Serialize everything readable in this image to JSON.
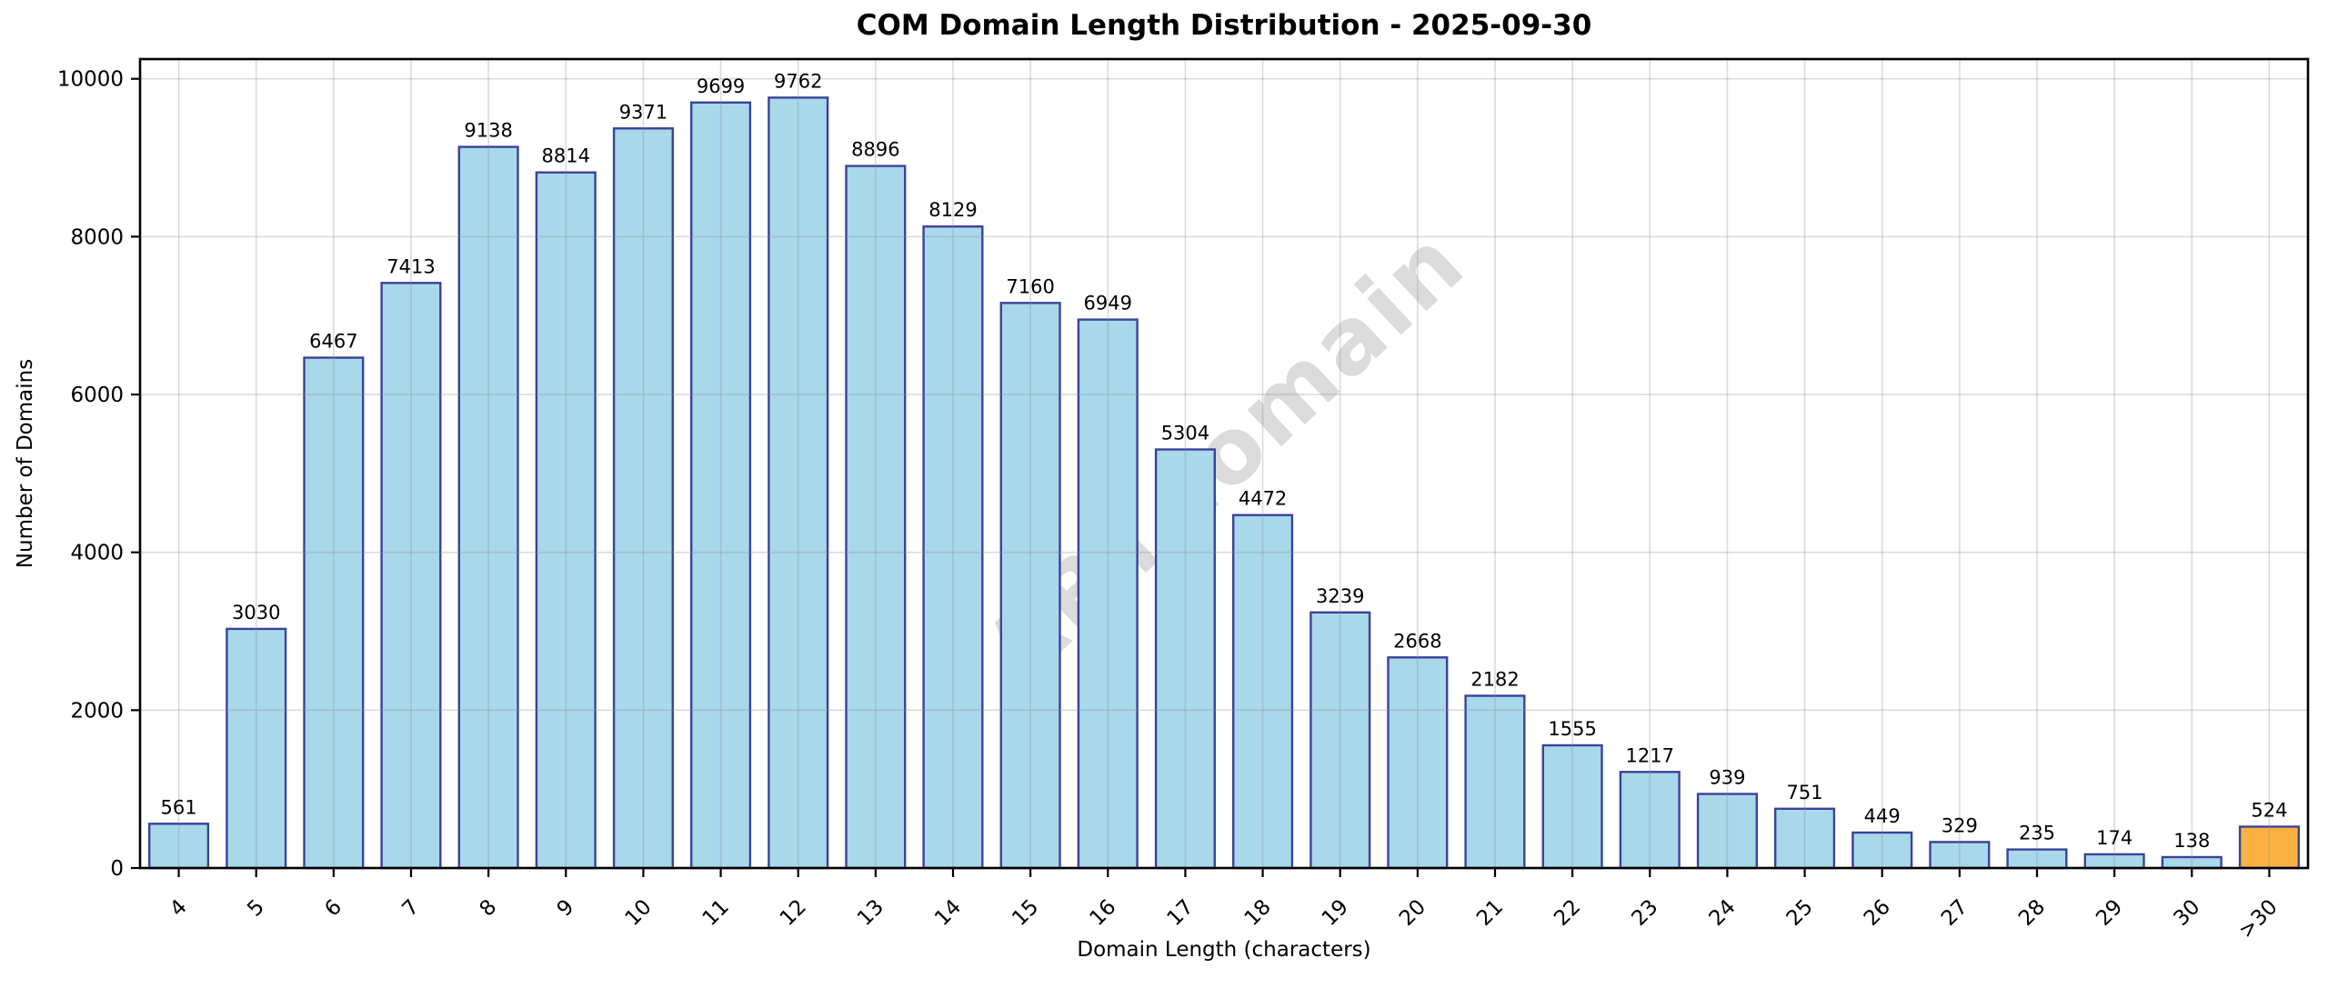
{
  "figure": {
    "title": "COM Domain Length Distribution - 2025-09-30",
    "watermark_text": "ABTdomain"
  },
  "chart_data": {
    "type": "bar",
    "title": "COM Domain Length Distribution - 2025-09-30",
    "xlabel": "Domain Length (characters)",
    "ylabel": "Number of Domains",
    "categories": [
      "4",
      "5",
      "6",
      "7",
      "8",
      "9",
      "10",
      "11",
      "12",
      "13",
      "14",
      "15",
      "16",
      "17",
      "18",
      "19",
      "20",
      "21",
      "22",
      "23",
      "24",
      "25",
      "26",
      "27",
      "28",
      "29",
      "30",
      ">30"
    ],
    "values": [
      561,
      3030,
      6467,
      7413,
      9138,
      8814,
      9371,
      9699,
      9762,
      8896,
      8129,
      7160,
      6949,
      5304,
      4472,
      3239,
      2668,
      2182,
      1555,
      1217,
      939,
      751,
      449,
      329,
      235,
      174,
      138,
      524
    ],
    "value_labels_shown": true,
    "yticks": [
      0,
      2000,
      4000,
      6000,
      8000,
      10000
    ],
    "ylim": [
      0,
      10250
    ],
    "grid": "on",
    "legend": "none",
    "bar_fill_color": "#A8D8EA",
    "bar_edge_color": "#3B4299",
    "highlight_index": 27,
    "highlight_fill_color": "#FBB042",
    "watermark": {
      "text": "ABTdomain",
      "color": "#C8C8C8",
      "opacity": 0.65,
      "rotation_deg": 45
    }
  }
}
